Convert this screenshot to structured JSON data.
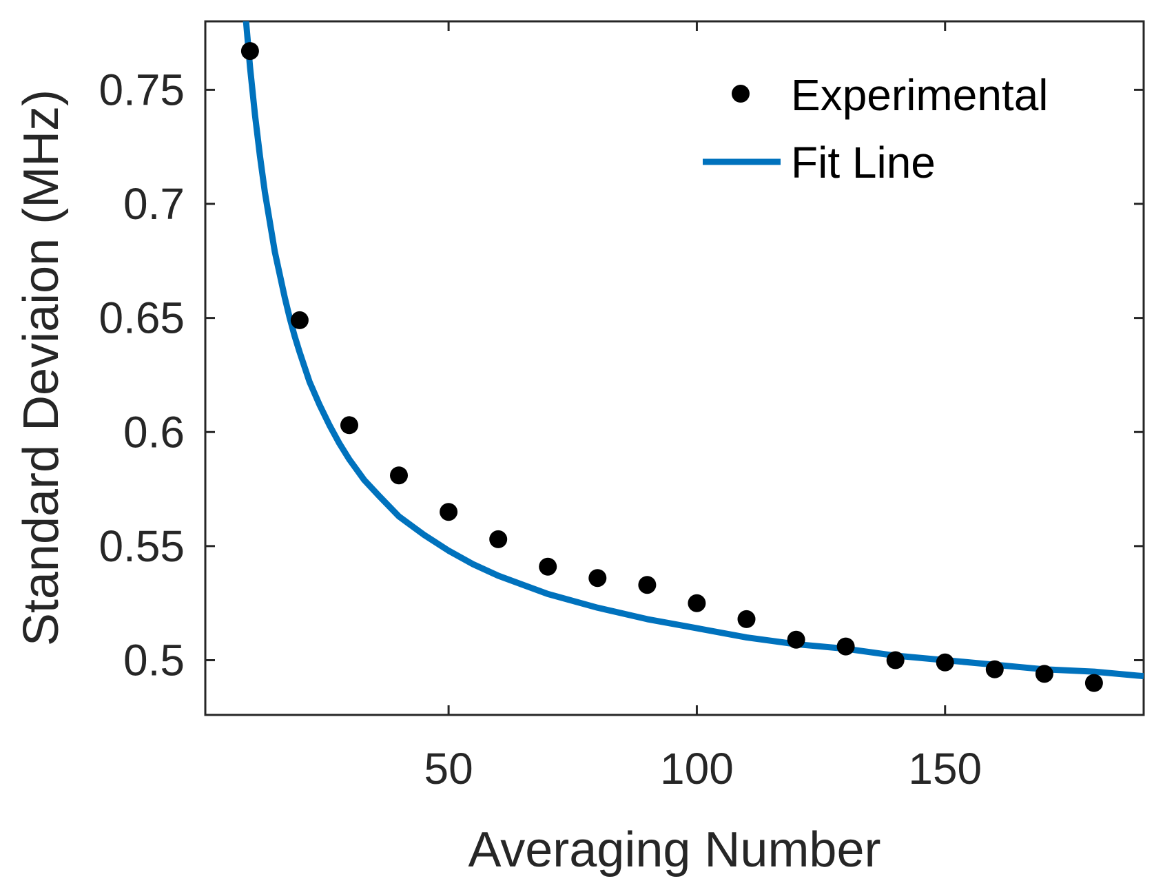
{
  "chart_data": {
    "type": "scatter",
    "title": "",
    "xlabel": "Averaging Number",
    "ylabel": "Standard Deviaion (MHz)",
    "xlim": [
      1,
      190
    ],
    "ylim": [
      0.476,
      0.78
    ],
    "x_ticks": [
      50,
      100,
      150
    ],
    "x_tick_labels": [
      "50",
      "100",
      "150"
    ],
    "y_ticks": [
      0.5,
      0.55,
      0.6,
      0.65,
      0.7,
      0.75
    ],
    "y_tick_labels": [
      "0.5",
      "0.55",
      "0.6",
      "0.65",
      "0.7",
      "0.75"
    ],
    "grid": false,
    "legend_position": "top-right",
    "series": [
      {
        "name": "Experimental",
        "type": "scatter",
        "color": "#000000",
        "x": [
          10,
          20,
          30,
          40,
          50,
          60,
          70,
          80,
          90,
          100,
          110,
          120,
          130,
          140,
          150,
          160,
          170,
          180
        ],
        "y": [
          0.767,
          0.649,
          0.603,
          0.581,
          0.565,
          0.553,
          0.541,
          0.536,
          0.533,
          0.525,
          0.518,
          0.509,
          0.506,
          0.5,
          0.499,
          0.496,
          0.494,
          0.49
        ]
      },
      {
        "name": "Fit Line",
        "type": "line",
        "color": "#0072BD",
        "x": [
          9,
          10,
          11,
          12,
          13,
          14,
          15,
          16,
          17,
          18,
          19,
          20,
          22,
          24,
          26,
          28,
          30,
          33,
          36,
          40,
          45,
          50,
          55,
          60,
          70,
          80,
          90,
          100,
          110,
          120,
          130,
          140,
          150,
          160,
          170,
          180,
          190
        ],
        "y": [
          0.785,
          0.76,
          0.739,
          0.721,
          0.705,
          0.692,
          0.679,
          0.669,
          0.659,
          0.65,
          0.642,
          0.635,
          0.622,
          0.612,
          0.603,
          0.595,
          0.588,
          0.579,
          0.572,
          0.563,
          0.555,
          0.548,
          0.542,
          0.537,
          0.529,
          0.523,
          0.518,
          0.514,
          0.51,
          0.507,
          0.505,
          0.502,
          0.5,
          0.498,
          0.496,
          0.495,
          0.493
        ]
      }
    ]
  }
}
